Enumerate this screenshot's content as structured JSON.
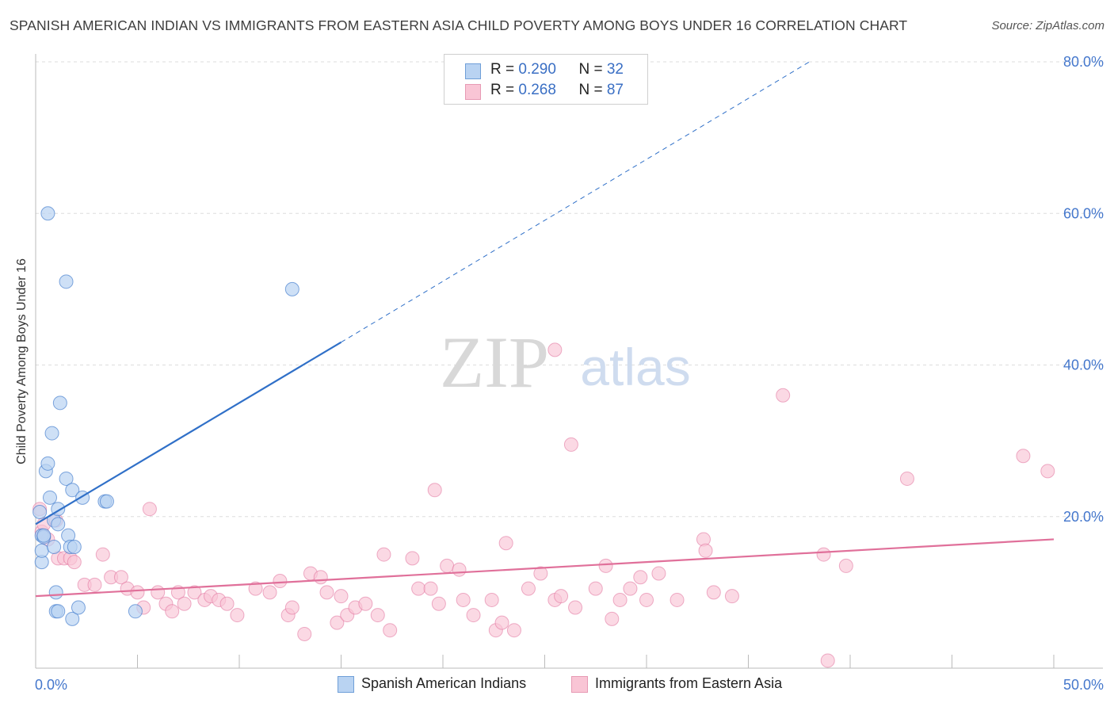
{
  "header": {
    "title": "SPANISH AMERICAN INDIAN VS IMMIGRANTS FROM EASTERN ASIA CHILD POVERTY AMONG BOYS UNDER 16 CORRELATION CHART",
    "source": "Source: ZipAtlas.com"
  },
  "watermark": {
    "zip": "ZIP",
    "atlas": "atlas"
  },
  "legend": {
    "rows": [
      {
        "r_label": "R = ",
        "r_value": "0.290",
        "n_label": "N = ",
        "n_value": "32"
      },
      {
        "r_label": "R = ",
        "r_value": "0.268",
        "n_label": "N = ",
        "n_value": "87"
      }
    ]
  },
  "bottom_legend": {
    "series1": "Spanish American Indians",
    "series2": "Immigrants from Eastern Asia"
  },
  "colors": {
    "blue": "#3070c8",
    "blue_fill": "#b9d3f2",
    "pink": "#e0709a",
    "pink_fill": "#f9c5d5",
    "grid": "#dddddd",
    "tick_text": "#4477cc"
  },
  "chart_data": {
    "type": "scatter",
    "title": "SPANISH AMERICAN INDIAN VS IMMIGRANTS FROM EASTERN ASIA CHILD POVERTY AMONG BOYS UNDER 16 CORRELATION CHART",
    "xlabel": "",
    "ylabel": "Child Poverty Among Boys Under 16",
    "xlim": [
      0,
      50
    ],
    "ylim": [
      0,
      80
    ],
    "x_tick_labels": [
      "0.0%",
      "50.0%"
    ],
    "y_ticks": [
      20,
      40,
      60,
      80
    ],
    "y_tick_labels": [
      "20.0%",
      "40.0%",
      "60.0%",
      "80.0%"
    ],
    "grid": true,
    "legend_position": "top-center",
    "series": [
      {
        "name": "Spanish American Indians",
        "color": "#3070c8",
        "points": [
          [
            0.2,
            20.6
          ],
          [
            0.3,
            17.5
          ],
          [
            0.4,
            17.3
          ],
          [
            0.3,
            14.0
          ],
          [
            0.3,
            15.5
          ],
          [
            0.5,
            26.0
          ],
          [
            0.6,
            27.0
          ],
          [
            0.7,
            22.5
          ],
          [
            0.8,
            31.0
          ],
          [
            0.9,
            19.5
          ],
          [
            0.9,
            16.0
          ],
          [
            1.0,
            10.0
          ],
          [
            1.0,
            7.5
          ],
          [
            1.1,
            19.0
          ],
          [
            1.1,
            21.0
          ],
          [
            1.2,
            35.0
          ],
          [
            1.5,
            25.0
          ],
          [
            1.6,
            17.5
          ],
          [
            1.7,
            16.0
          ],
          [
            1.8,
            23.5
          ],
          [
            1.8,
            6.5
          ],
          [
            1.9,
            16.0
          ],
          [
            2.1,
            8.0
          ],
          [
            2.3,
            22.5
          ],
          [
            3.4,
            22.0
          ],
          [
            3.5,
            22.0
          ],
          [
            4.9,
            7.5
          ],
          [
            0.6,
            60.0
          ],
          [
            1.5,
            51.0
          ],
          [
            12.6,
            50.0
          ],
          [
            0.4,
            17.5
          ],
          [
            1.1,
            7.5
          ]
        ],
        "trend": {
          "x0": 0,
          "y0": 19.0,
          "x1": 15.0,
          "y1": 43.0,
          "dash_to_x": 38.0,
          "dash_to_y": 80.0
        }
      },
      {
        "name": "Immigrants from Eastern Asia",
        "color": "#e0709a",
        "points": [
          [
            0.2,
            21.0
          ],
          [
            0.3,
            18.0
          ],
          [
            0.4,
            19.0
          ],
          [
            0.6,
            17.0
          ],
          [
            1.0,
            19.5
          ],
          [
            1.1,
            14.5
          ],
          [
            1.4,
            14.5
          ],
          [
            1.7,
            14.5
          ],
          [
            1.9,
            14.0
          ],
          [
            2.4,
            11.0
          ],
          [
            2.9,
            11.0
          ],
          [
            3.3,
            15.0
          ],
          [
            3.7,
            12.0
          ],
          [
            4.2,
            12.0
          ],
          [
            4.5,
            10.5
          ],
          [
            5.0,
            10.0
          ],
          [
            5.3,
            8.0
          ],
          [
            5.6,
            21.0
          ],
          [
            6.0,
            10.0
          ],
          [
            6.4,
            8.5
          ],
          [
            6.7,
            7.5
          ],
          [
            7.0,
            10.0
          ],
          [
            7.3,
            8.5
          ],
          [
            7.8,
            10.0
          ],
          [
            8.3,
            9.0
          ],
          [
            8.6,
            9.5
          ],
          [
            9.0,
            9.0
          ],
          [
            9.4,
            8.5
          ],
          [
            9.9,
            7.0
          ],
          [
            10.8,
            10.5
          ],
          [
            11.5,
            10.0
          ],
          [
            12.0,
            11.5
          ],
          [
            12.4,
            7.0
          ],
          [
            12.6,
            8.0
          ],
          [
            13.2,
            4.5
          ],
          [
            13.5,
            12.5
          ],
          [
            14.0,
            12.0
          ],
          [
            14.3,
            10.0
          ],
          [
            14.8,
            6.0
          ],
          [
            15.0,
            9.5
          ],
          [
            15.3,
            7.0
          ],
          [
            15.7,
            8.0
          ],
          [
            16.2,
            8.5
          ],
          [
            16.8,
            7.0
          ],
          [
            17.1,
            15.0
          ],
          [
            17.4,
            5.0
          ],
          [
            18.5,
            14.5
          ],
          [
            18.8,
            10.5
          ],
          [
            19.4,
            10.5
          ],
          [
            19.8,
            8.5
          ],
          [
            19.6,
            23.5
          ],
          [
            20.2,
            13.5
          ],
          [
            20.8,
            13.0
          ],
          [
            21.0,
            9.0
          ],
          [
            21.5,
            7.0
          ],
          [
            22.4,
            9.0
          ],
          [
            22.6,
            5.0
          ],
          [
            22.9,
            6.0
          ],
          [
            23.1,
            16.5
          ],
          [
            23.5,
            5.0
          ],
          [
            24.2,
            10.5
          ],
          [
            24.8,
            12.5
          ],
          [
            25.5,
            9.0
          ],
          [
            25.8,
            9.5
          ],
          [
            25.5,
            42.0
          ],
          [
            26.3,
            29.5
          ],
          [
            26.5,
            8.0
          ],
          [
            27.5,
            10.5
          ],
          [
            28.0,
            13.5
          ],
          [
            28.3,
            6.5
          ],
          [
            28.7,
            9.0
          ],
          [
            29.2,
            10.5
          ],
          [
            29.7,
            12.0
          ],
          [
            30.0,
            9.0
          ],
          [
            30.6,
            12.5
          ],
          [
            31.5,
            9.0
          ],
          [
            32.8,
            17.0
          ],
          [
            32.9,
            15.5
          ],
          [
            33.3,
            10.0
          ],
          [
            34.2,
            9.5
          ],
          [
            36.7,
            36.0
          ],
          [
            38.7,
            15.0
          ],
          [
            38.9,
            1.0
          ],
          [
            39.8,
            13.5
          ],
          [
            42.8,
            25.0
          ],
          [
            48.5,
            28.0
          ],
          [
            49.7,
            26.0
          ]
        ],
        "trend": {
          "x0": 0,
          "y0": 9.5,
          "x1": 50.0,
          "y1": 17.0
        }
      }
    ]
  }
}
